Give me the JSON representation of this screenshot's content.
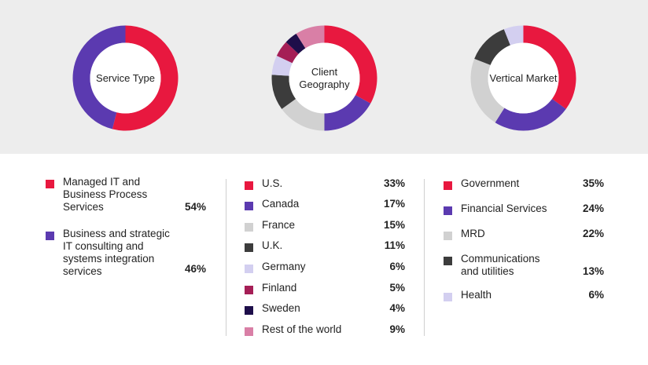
{
  "chart_data": [
    {
      "type": "pie",
      "title": "Service Type",
      "slices": [
        {
          "label": "Managed IT and Business Process Services",
          "value": 54,
          "display": "54%",
          "color": "#e8183f"
        },
        {
          "label": "Business and strategic IT consulting and systems integration services",
          "value": 46,
          "display": "46%",
          "color": "#5b3ab0"
        }
      ]
    },
    {
      "type": "pie",
      "title": "Client Geography",
      "slices": [
        {
          "label": "U.S.",
          "value": 33,
          "display": "33%",
          "color": "#e8183f"
        },
        {
          "label": "Canada",
          "value": 17,
          "display": "17%",
          "color": "#5b3ab0"
        },
        {
          "label": "France",
          "value": 15,
          "display": "15%",
          "color": "#d1d1d1"
        },
        {
          "label": "U.K.",
          "value": 11,
          "display": "11%",
          "color": "#3c3c3c"
        },
        {
          "label": "Germany",
          "value": 6,
          "display": "6%",
          "color": "#d3cff0"
        },
        {
          "label": "Finland",
          "value": 5,
          "display": "5%",
          "color": "#a51e56"
        },
        {
          "label": "Sweden",
          "value": 4,
          "display": "4%",
          "color": "#1e0e4a"
        },
        {
          "label": "Rest of the world",
          "value": 9,
          "display": "9%",
          "color": "#d97fa6"
        }
      ]
    },
    {
      "type": "pie",
      "title": "Vertical Market",
      "slices": [
        {
          "label": "Government",
          "value": 35,
          "display": "35%",
          "color": "#e8183f"
        },
        {
          "label": "Financial Services",
          "value": 24,
          "display": "24%",
          "color": "#5b3ab0"
        },
        {
          "label": "MRD",
          "value": 22,
          "display": "22%",
          "color": "#d1d1d1"
        },
        {
          "label": "Communications and utilities",
          "value": 13,
          "display": "13%",
          "color": "#3c3c3c"
        },
        {
          "label": "Health",
          "value": 6,
          "display": "6%",
          "color": "#d3cff0"
        }
      ]
    }
  ]
}
